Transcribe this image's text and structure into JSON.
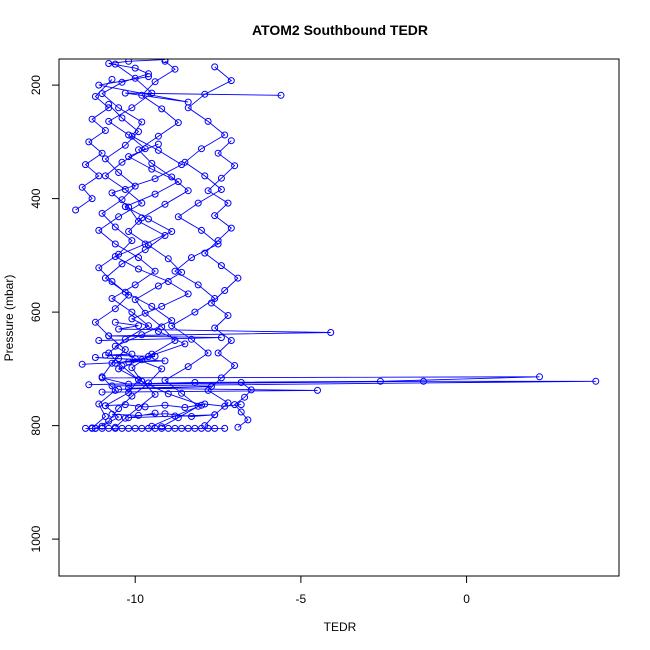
{
  "chart_data": {
    "type": "line",
    "title": "ATOM2 Southbound TEDR",
    "xlabel": "TEDR",
    "ylabel": "Pressure (mbar)",
    "xlim": [
      -12.3,
      4.6
    ],
    "ylim": [
      1065,
      154
    ],
    "y_reversed": true,
    "x_ticks": [
      -10,
      -5,
      0
    ],
    "x_tick_labels": [
      "-10",
      "-5",
      "0"
    ],
    "y_ticks": [
      200,
      400,
      600,
      800,
      1000
    ],
    "y_tick_labels": [
      "200",
      "400",
      "600",
      "800",
      "1000"
    ],
    "grid": false,
    "legend": "none",
    "marker": "open-circle",
    "series_color": "#0000ff",
    "series": [
      {
        "x": [
          -11.2,
          -10.8,
          -10.5,
          -10.1,
          -9.6,
          -9.2,
          -10.0,
          -10.6,
          -9.8,
          -8.9,
          -9.5,
          -10.3,
          -10.9,
          -10.4,
          -9.7,
          -9.1,
          -9.9,
          -10.2,
          -10.7,
          -9.4,
          -8.6,
          -9.3,
          -10.1,
          -9.8,
          -10.5,
          -11.0,
          -10.4,
          -9.6,
          -10.0,
          -10.8,
          -10.2,
          -9.1
        ],
        "y": [
          805,
          792,
          770,
          748,
          725,
          700,
          682,
          660,
          640,
          615,
          590,
          565,
          540,
          515,
          490,
          465,
          440,
          415,
          390,
          365,
          340,
          315,
          290,
          265,
          240,
          215,
          195,
          180,
          170,
          162,
          158,
          155
        ]
      },
      {
        "x": [
          -10.6,
          -10.3,
          -9.9,
          -9.4,
          -9.8,
          -10.1,
          -9.5,
          -8.8,
          -9.2,
          -9.7,
          -10.0,
          -9.3,
          -8.6,
          -9.0,
          -9.6,
          -10.2,
          -9.8,
          -9.1,
          -8.4,
          -8.9,
          -9.5,
          -9.9,
          -9.3,
          -8.7,
          -9.2,
          -9.8,
          -9.4,
          -8.8,
          -9.1
        ],
        "y": [
          803,
          787,
          768,
          745,
          722,
          698,
          674,
          650,
          626,
          602,
          578,
          554,
          530,
          506,
          482,
          458,
          434,
          410,
          386,
          362,
          338,
          314,
          290,
          266,
          242,
          218,
          194,
          172,
          158
        ]
      },
      {
        "x": [
          -11.0,
          -10.5,
          -10.9,
          -10.2,
          -9.9,
          -10.4,
          -10.8,
          -10.3,
          -9.6,
          -10.1,
          -10.7,
          -10.0,
          -9.4,
          -9.9,
          -10.6,
          -11.1,
          -10.5,
          -9.8,
          -10.3,
          -10.9,
          -10.4,
          -9.7,
          -10.2,
          -10.8,
          -10.1,
          -9.5,
          -10.0,
          -10.6
        ],
        "y": [
          801,
          785,
          765,
          742,
          719,
          695,
          672,
          648,
          624,
          600,
          576,
          552,
          528,
          504,
          480,
          456,
          432,
          408,
          384,
          360,
          336,
          312,
          288,
          264,
          240,
          214,
          188,
          163
        ]
      },
      {
        "x": [
          -9.2,
          -8.7,
          -8.1,
          -8.6,
          -9.1,
          -8.4,
          -7.8,
          -8.3,
          -8.9,
          -8.2,
          -7.6,
          -8.1,
          -8.8,
          -8.3,
          -7.5,
          -8.0,
          -8.7,
          -8.1,
          -7.4,
          -7.9,
          -8.5,
          -8.0,
          -7.3,
          -7.8,
          -8.4,
          -7.9,
          -7.1,
          -7.6
        ],
        "y": [
          802,
          786,
          766,
          743,
          720,
          696,
          672,
          648,
          624,
          600,
          576,
          552,
          528,
          504,
          480,
          456,
          432,
          408,
          384,
          360,
          336,
          312,
          288,
          264,
          240,
          216,
          192,
          168
        ]
      },
      {
        "x": [
          -11.3,
          -10.9,
          -11.1,
          -10.6,
          -11.0,
          -10.7,
          -10.3,
          -10.8,
          -11.2,
          -10.6,
          -10.2,
          -10.7,
          -11.1,
          -10.5,
          -10.1,
          -10.6,
          -11.0,
          -10.4,
          -10.0,
          -10.5,
          -10.9,
          -10.3,
          -9.9,
          -10.4,
          -10.8
        ],
        "y": [
          804,
          784,
          762,
          738,
          714,
          690,
          666,
          642,
          618,
          594,
          570,
          546,
          522,
          498,
          474,
          450,
          426,
          402,
          378,
          354,
          330,
          306,
          282,
          258,
          234
        ]
      },
      {
        "x": [
          -11.8,
          -11.3,
          -11.6,
          -11.1,
          -11.5,
          -11.0,
          -11.4,
          -10.9,
          -11.3,
          -10.8,
          -11.2,
          -10.7
        ],
        "y": [
          420,
          400,
          380,
          360,
          340,
          320,
          300,
          280,
          260,
          240,
          220,
          190
        ]
      },
      {
        "x": [
          -7.9,
          -7.6,
          -7.2,
          -7.8,
          -7.4,
          -7.0,
          -7.5,
          -7.1,
          -7.6,
          -7.2,
          -7.7,
          -7.3,
          -6.9,
          -7.4,
          -7.9,
          -7.5,
          -7.1,
          -7.6,
          -7.2,
          -7.8,
          -7.4,
          -7.0,
          -7.5,
          -7.1
        ],
        "y": [
          800,
          781,
          760,
          738,
          716,
          694,
          672,
          650,
          628,
          606,
          584,
          562,
          540,
          518,
          496,
          474,
          452,
          430,
          408,
          386,
          364,
          342,
          320,
          298
        ]
      },
      {
        "x": [
          -6.9,
          -6.6,
          -6.8,
          -7.0,
          -6.7,
          -6.5,
          -6.8
        ],
        "y": [
          803,
          790,
          776,
          763,
          750,
          737,
          724
        ]
      },
      {
        "x": [
          -9.5,
          -8.8,
          -8.0,
          -9.0,
          -9.8,
          -10.5,
          -9.6,
          -8.5,
          -9.3,
          -10.1,
          -9.2,
          -8.4,
          -9.0,
          -9.9,
          -10.6,
          -9.7,
          -8.9,
          -9.6,
          -10.3,
          -9.4,
          -8.7,
          -9.5,
          -10.2,
          -9.3
        ],
        "y": [
          801,
          783,
          764,
          744,
          722,
          700,
          678,
          656,
          634,
          612,
          590,
          568,
          546,
          524,
          502,
          480,
          458,
          436,
          414,
          392,
          370,
          348,
          326,
          304
        ]
      },
      {
        "x": [
          -11.1,
          -7.4,
          -10.8,
          -4.1,
          -10.5,
          -9.9,
          -10.6
        ],
        "y": [
          650,
          645,
          642,
          636,
          630,
          624,
          618
        ]
      },
      {
        "x": [
          -11.4,
          -8.2,
          -2.6,
          2.2,
          -11.0,
          -10.2,
          -1.3,
          3.9,
          -10.7
        ],
        "y": [
          728,
          724,
          722,
          714,
          716,
          727,
          722,
          722,
          730
        ]
      },
      {
        "x": [
          -11.0,
          -4.5,
          -10.2,
          -7.7,
          -10.5
        ],
        "y": [
          741,
          738,
          734,
          731,
          736
        ]
      },
      {
        "x": [
          -5.6,
          -10.3,
          -8.4,
          -11.1,
          -9.6
        ],
        "y": [
          218,
          214,
          230,
          200,
          185
        ]
      },
      {
        "x": [
          -11.6,
          -10.2,
          -9.1,
          -10.5,
          -11.2,
          -9.8,
          -10.6,
          -9.4,
          -10.9,
          -10.1
        ],
        "y": [
          692,
          688,
          686,
          682,
          680,
          684,
          690,
          678,
          676,
          674
        ]
      },
      {
        "x": [
          -11.5,
          -11.3,
          -11.2,
          -11.0,
          -10.8,
          -10.6,
          -10.4,
          -10.2,
          -10.0,
          -9.8,
          -9.6,
          -9.4,
          -9.2,
          -9.0,
          -8.8,
          -8.6,
          -8.4,
          -8.2,
          -8.0,
          -7.8,
          -7.6,
          -7.3
        ],
        "y": [
          805,
          805,
          805,
          805,
          805,
          805,
          805,
          805,
          805,
          805,
          805,
          805,
          805,
          805,
          805,
          805,
          805,
          805,
          805,
          805,
          805,
          805
        ]
      },
      {
        "x": [
          -10.9,
          -10.3,
          -9.7,
          -9.1,
          -8.5,
          -7.9,
          -7.3,
          -6.8
        ],
        "y": [
          765,
          763,
          767,
          764,
          768,
          762,
          766,
          763
        ]
      },
      {
        "x": [
          -10.7,
          -9.9,
          -9.1,
          -8.3,
          -7.6,
          -10.2,
          -9.4
        ],
        "y": [
          780,
          782,
          779,
          784,
          781,
          786,
          778
        ]
      }
    ]
  }
}
